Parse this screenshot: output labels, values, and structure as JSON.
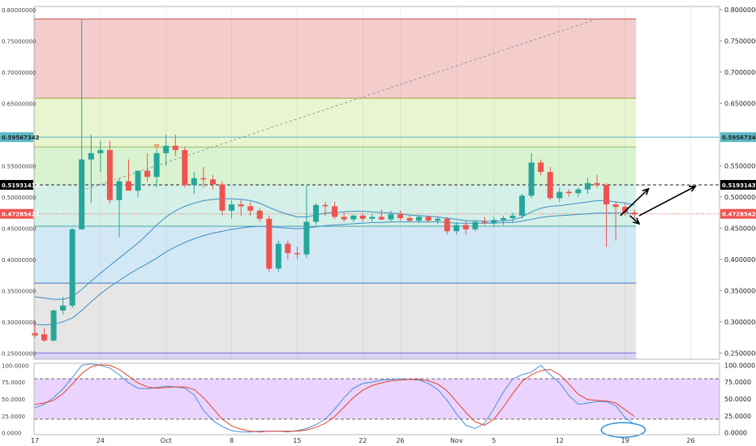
{
  "chart_data": [
    {
      "type": "candlestick",
      "panel": "price",
      "ylim": [
        0.24,
        0.805
      ],
      "price_ticks": [
        "0.80000000",
        "0.75000000",
        "0.70000000",
        "0.65000000",
        "0.55000000",
        "0.50000000",
        "0.45000000",
        "0.40000000",
        "0.35000000",
        "0.30000000",
        "0.25000000"
      ],
      "price_tick_values": [
        0.8,
        0.75,
        0.7,
        0.65,
        0.55,
        0.5,
        0.45,
        0.4,
        0.35,
        0.3,
        0.25
      ],
      "left_price_ticks": [
        "0.80000000",
        "0.75000000",
        "0.70000000",
        "0.65000000",
        "0.55000000",
        "0.50000000",
        "0.45000000",
        "0.40000000",
        "0.35000000",
        "0.30000000",
        "0.25000000"
      ],
      "x_dates": [
        "17",
        "24",
        "Oct",
        "8",
        "15",
        "22",
        "26",
        "Nov",
        "5",
        "12",
        "19",
        "26"
      ],
      "x_date_index": [
        0,
        7,
        14,
        21,
        28,
        35,
        39,
        45,
        49,
        56,
        63,
        70
      ],
      "price_tags": [
        {
          "label": "0.59567342",
          "value": 0.59567342,
          "color": "#5bb8c4",
          "text_color": "#222222"
        },
        {
          "label": "0.51931433",
          "value": 0.51931433,
          "color": "#000000",
          "text_color": "#ffffff"
        },
        {
          "label": "0.47285424",
          "value": 0.47285424,
          "color": "#ef5350",
          "text_color": "#ffffff"
        }
      ],
      "left_price_tags": [
        {
          "label": "0.59567342",
          "value": 0.59567342,
          "color": "#5bb8c4",
          "text_color": "#222222"
        },
        {
          "label": "0.51931433",
          "value": 0.51931433,
          "color": "#000000",
          "text_color": "#ffffff"
        },
        {
          "label": "0.47285424",
          "value": 0.47285424,
          "color": "#ef5350",
          "text_color": "#ffffff"
        }
      ],
      "fib_zones": [
        {
          "from": 0.785,
          "to": 0.658,
          "color": "#f4cccc"
        },
        {
          "from": 0.658,
          "to": 0.58,
          "color": "#e8f5d0"
        },
        {
          "from": 0.58,
          "to": 0.519,
          "color": "#d9f2d0"
        },
        {
          "from": 0.519,
          "to": 0.453,
          "color": "#d4f0e8"
        },
        {
          "from": 0.453,
          "to": 0.362,
          "color": "#d3e8f5"
        },
        {
          "from": 0.362,
          "to": 0.25,
          "color": "#e6e6e6"
        },
        {
          "from": 0.25,
          "to": 0.24,
          "color": "#d9d4f5"
        }
      ],
      "fib_lines": [
        {
          "value": 0.785,
          "color": "#c0504d"
        },
        {
          "value": 0.658,
          "color": "#a9a13a"
        },
        {
          "value": 0.58,
          "color": "#8fbf5a"
        },
        {
          "value": 0.453,
          "color": "#4aa6a6"
        },
        {
          "value": 0.362,
          "color": "#3c7fbf"
        },
        {
          "value": 0.25,
          "color": "#7a6fd0"
        }
      ],
      "candles": [
        {
          "o": 0.282,
          "h": 0.3,
          "l": 0.275,
          "c": 0.278
        },
        {
          "o": 0.28,
          "h": 0.29,
          "l": 0.268,
          "c": 0.27
        },
        {
          "o": 0.27,
          "h": 0.32,
          "l": 0.268,
          "c": 0.318
        },
        {
          "o": 0.318,
          "h": 0.34,
          "l": 0.312,
          "c": 0.326
        },
        {
          "o": 0.326,
          "h": 0.45,
          "l": 0.322,
          "c": 0.448
        },
        {
          "o": 0.448,
          "h": 0.785,
          "l": 0.448,
          "c": 0.56
        },
        {
          "o": 0.56,
          "h": 0.6,
          "l": 0.49,
          "c": 0.57
        },
        {
          "o": 0.57,
          "h": 0.59,
          "l": 0.54,
          "c": 0.575
        },
        {
          "o": 0.575,
          "h": 0.59,
          "l": 0.49,
          "c": 0.495
        },
        {
          "o": 0.495,
          "h": 0.53,
          "l": 0.435,
          "c": 0.525
        },
        {
          "o": 0.525,
          "h": 0.56,
          "l": 0.51,
          "c": 0.51
        },
        {
          "o": 0.51,
          "h": 0.54,
          "l": 0.5,
          "c": 0.542
        },
        {
          "o": 0.542,
          "h": 0.57,
          "l": 0.525,
          "c": 0.532
        },
        {
          "o": 0.532,
          "h": 0.575,
          "l": 0.515,
          "c": 0.57
        },
        {
          "o": 0.57,
          "h": 0.6,
          "l": 0.55,
          "c": 0.582
        },
        {
          "o": 0.582,
          "h": 0.6,
          "l": 0.565,
          "c": 0.575
        },
        {
          "o": 0.575,
          "h": 0.58,
          "l": 0.515,
          "c": 0.519
        },
        {
          "o": 0.519,
          "h": 0.54,
          "l": 0.505,
          "c": 0.53
        },
        {
          "o": 0.53,
          "h": 0.548,
          "l": 0.515,
          "c": 0.528
        },
        {
          "o": 0.528,
          "h": 0.535,
          "l": 0.512,
          "c": 0.52
        },
        {
          "o": 0.52,
          "h": 0.525,
          "l": 0.47,
          "c": 0.478
        },
        {
          "o": 0.478,
          "h": 0.495,
          "l": 0.465,
          "c": 0.488
        },
        {
          "o": 0.488,
          "h": 0.495,
          "l": 0.47,
          "c": 0.485
        },
        {
          "o": 0.485,
          "h": 0.492,
          "l": 0.47,
          "c": 0.478
        },
        {
          "o": 0.478,
          "h": 0.482,
          "l": 0.46,
          "c": 0.465
        },
        {
          "o": 0.465,
          "h": 0.47,
          "l": 0.38,
          "c": 0.385
        },
        {
          "o": 0.385,
          "h": 0.43,
          "l": 0.38,
          "c": 0.425
        },
        {
          "o": 0.425,
          "h": 0.43,
          "l": 0.4,
          "c": 0.41
        },
        {
          "o": 0.41,
          "h": 0.42,
          "l": 0.4,
          "c": 0.408
        },
        {
          "o": 0.408,
          "h": 0.518,
          "l": 0.402,
          "c": 0.46
        },
        {
          "o": 0.46,
          "h": 0.49,
          "l": 0.455,
          "c": 0.487
        },
        {
          "o": 0.487,
          "h": 0.492,
          "l": 0.47,
          "c": 0.485
        },
        {
          "o": 0.485,
          "h": 0.492,
          "l": 0.465,
          "c": 0.468
        },
        {
          "o": 0.468,
          "h": 0.475,
          "l": 0.46,
          "c": 0.464
        },
        {
          "o": 0.464,
          "h": 0.472,
          "l": 0.46,
          "c": 0.47
        },
        {
          "o": 0.47,
          "h": 0.475,
          "l": 0.46,
          "c": 0.465
        },
        {
          "o": 0.465,
          "h": 0.472,
          "l": 0.46,
          "c": 0.468
        },
        {
          "o": 0.468,
          "h": 0.48,
          "l": 0.462,
          "c": 0.464
        },
        {
          "o": 0.464,
          "h": 0.478,
          "l": 0.46,
          "c": 0.472
        },
        {
          "o": 0.472,
          "h": 0.478,
          "l": 0.462,
          "c": 0.466
        },
        {
          "o": 0.466,
          "h": 0.47,
          "l": 0.46,
          "c": 0.462
        },
        {
          "o": 0.462,
          "h": 0.47,
          "l": 0.458,
          "c": 0.468
        },
        {
          "o": 0.468,
          "h": 0.47,
          "l": 0.46,
          "c": 0.462
        },
        {
          "o": 0.462,
          "h": 0.468,
          "l": 0.456,
          "c": 0.465
        },
        {
          "o": 0.465,
          "h": 0.468,
          "l": 0.44,
          "c": 0.445
        },
        {
          "o": 0.445,
          "h": 0.46,
          "l": 0.44,
          "c": 0.455
        },
        {
          "o": 0.455,
          "h": 0.462,
          "l": 0.44,
          "c": 0.448
        },
        {
          "o": 0.448,
          "h": 0.462,
          "l": 0.445,
          "c": 0.46
        },
        {
          "o": 0.46,
          "h": 0.468,
          "l": 0.455,
          "c": 0.458
        },
        {
          "o": 0.458,
          "h": 0.468,
          "l": 0.452,
          "c": 0.463
        },
        {
          "o": 0.463,
          "h": 0.47,
          "l": 0.455,
          "c": 0.466
        },
        {
          "o": 0.466,
          "h": 0.475,
          "l": 0.46,
          "c": 0.47
        },
        {
          "o": 0.47,
          "h": 0.505,
          "l": 0.465,
          "c": 0.502
        },
        {
          "o": 0.502,
          "h": 0.57,
          "l": 0.498,
          "c": 0.555
        },
        {
          "o": 0.555,
          "h": 0.56,
          "l": 0.535,
          "c": 0.54
        },
        {
          "o": 0.54,
          "h": 0.548,
          "l": 0.495,
          "c": 0.498
        },
        {
          "o": 0.498,
          "h": 0.515,
          "l": 0.492,
          "c": 0.508
        },
        {
          "o": 0.508,
          "h": 0.512,
          "l": 0.5,
          "c": 0.506
        },
        {
          "o": 0.506,
          "h": 0.515,
          "l": 0.5,
          "c": 0.512
        },
        {
          "o": 0.512,
          "h": 0.53,
          "l": 0.505,
          "c": 0.522
        },
        {
          "o": 0.522,
          "h": 0.535,
          "l": 0.515,
          "c": 0.519
        },
        {
          "o": 0.519,
          "h": 0.522,
          "l": 0.42,
          "c": 0.488
        },
        {
          "o": 0.488,
          "h": 0.492,
          "l": 0.43,
          "c": 0.484
        },
        {
          "o": 0.484,
          "h": 0.49,
          "l": 0.47,
          "c": 0.475
        },
        {
          "o": 0.475,
          "h": 0.48,
          "l": 0.465,
          "c": 0.472
        }
      ],
      "ma_slow": [
        0.296,
        0.295,
        0.296,
        0.3,
        0.306,
        0.318,
        0.332,
        0.345,
        0.356,
        0.366,
        0.376,
        0.385,
        0.393,
        0.402,
        0.412,
        0.42,
        0.427,
        0.433,
        0.438,
        0.442,
        0.445,
        0.448,
        0.45,
        0.452,
        0.453,
        0.452,
        0.451,
        0.45,
        0.449,
        0.45,
        0.452,
        0.454,
        0.455,
        0.456,
        0.457,
        0.458,
        0.459,
        0.459,
        0.46,
        0.46,
        0.46,
        0.46,
        0.46,
        0.46,
        0.459,
        0.458,
        0.458,
        0.458,
        0.458,
        0.458,
        0.459,
        0.459,
        0.461,
        0.464,
        0.467,
        0.469,
        0.47,
        0.471,
        0.472,
        0.473,
        0.474,
        0.474,
        0.474,
        0.474,
        0.473
      ],
      "ma_fast": [
        0.34,
        0.338,
        0.336,
        0.336,
        0.34,
        0.352,
        0.365,
        0.378,
        0.39,
        0.402,
        0.414,
        0.426,
        0.44,
        0.455,
        0.468,
        0.478,
        0.485,
        0.49,
        0.494,
        0.496,
        0.497,
        0.497,
        0.496,
        0.494,
        0.49,
        0.483,
        0.477,
        0.472,
        0.468,
        0.468,
        0.471,
        0.474,
        0.475,
        0.476,
        0.477,
        0.477,
        0.476,
        0.475,
        0.474,
        0.473,
        0.471,
        0.47,
        0.469,
        0.468,
        0.466,
        0.464,
        0.462,
        0.462,
        0.461,
        0.461,
        0.462,
        0.463,
        0.468,
        0.476,
        0.482,
        0.485,
        0.486,
        0.488,
        0.49,
        0.492,
        0.494,
        0.494,
        0.492,
        0.49,
        0.487
      ],
      "trend_line": {
        "from": [
          5,
          0.51
        ],
        "to": [
          60,
          0.785
        ]
      },
      "hlines": [
        {
          "value": 0.59567342,
          "color": "#5bb8c4",
          "style": "solid"
        },
        {
          "value": 0.51931433,
          "color": "#222222",
          "style": "dashed"
        },
        {
          "value": 0.47285424,
          "color": "#ef5350",
          "style": "dotted"
        }
      ],
      "arrows": [
        {
          "from": [
            62.5,
            0.47
          ],
          "to": [
            65.5,
            0.513
          ]
        },
        {
          "from": [
            64.5,
            0.47
          ],
          "to": [
            70.5,
            0.517
          ]
        },
        {
          "from": [
            63.5,
            0.47
          ],
          "to": [
            64.5,
            0.457
          ]
        }
      ],
      "marker": {
        "index": 13,
        "value": 0.579,
        "shape": "triangle-down",
        "color": "#e6a07a"
      }
    },
    {
      "type": "line",
      "panel": "stochastic",
      "ylim": [
        -3,
        103
      ],
      "ticks": [
        "100.0000",
        "75.0000",
        "50.0000",
        "25.0000",
        "0.0000"
      ],
      "tick_values": [
        100,
        75,
        50,
        25,
        0
      ],
      "band": {
        "upper": 80,
        "lower": 20,
        "color": "#e6ccff"
      },
      "series": [
        {
          "key": "k",
          "color": "#4a90d9",
          "values": [
            37,
            42,
            52,
            65,
            82,
            100,
            102,
            100,
            96,
            86,
            74,
            66,
            65,
            67,
            69,
            68,
            66,
            56,
            33,
            18,
            9,
            3,
            1,
            1,
            2,
            2,
            2,
            1,
            3,
            6,
            12,
            20,
            35,
            52,
            66,
            73,
            75,
            78,
            79,
            80,
            79,
            78,
            73,
            64,
            48,
            28,
            11,
            6,
            14,
            36,
            60,
            80,
            86,
            90,
            100,
            86,
            74,
            55,
            42,
            44,
            46,
            46,
            40,
            22,
            12
          ]
        },
        {
          "key": "d",
          "color": "#e8422a",
          "values": [
            42,
            44,
            48,
            58,
            72,
            88,
            98,
            101,
            100,
            94,
            84,
            74,
            68,
            66,
            67,
            68,
            68,
            64,
            52,
            36,
            20,
            10,
            5,
            2,
            1,
            2,
            2,
            2,
            2,
            4,
            8,
            14,
            24,
            38,
            52,
            63,
            70,
            74,
            77,
            78,
            79,
            79,
            77,
            72,
            62,
            46,
            30,
            16,
            11,
            20,
            38,
            58,
            76,
            86,
            92,
            94,
            86,
            72,
            57,
            49,
            48,
            47,
            44,
            34,
            24
          ]
        }
      ]
    }
  ]
}
